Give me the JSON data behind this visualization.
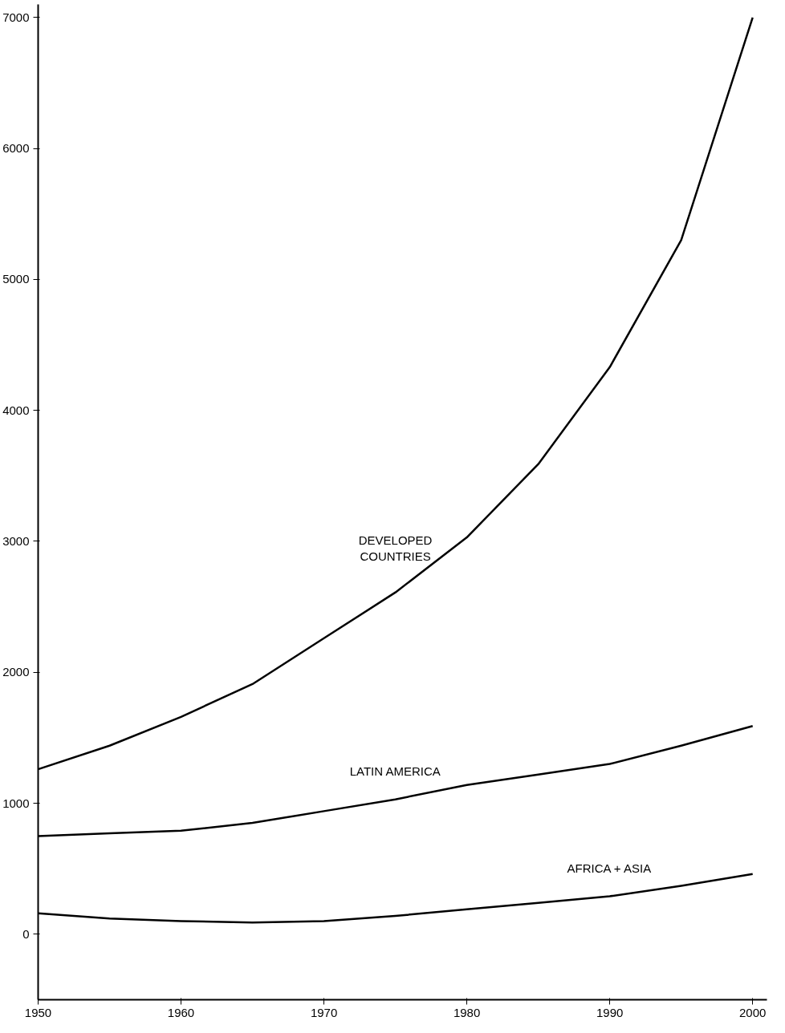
{
  "chart_data": {
    "type": "line",
    "x": [
      1950,
      1955,
      1960,
      1965,
      1970,
      1975,
      1980,
      1985,
      1990,
      1995,
      2000
    ],
    "series": [
      {
        "name": "DEVELOPED\nCOUNTRIES",
        "color": "#000000",
        "values": [
          1260,
          1440,
          1660,
          1910,
          2260,
          2610,
          3030,
          3590,
          4330,
          5300,
          7000
        ]
      },
      {
        "name": "LATIN AMERICA",
        "color": "#000000",
        "values": [
          750,
          770,
          790,
          850,
          940,
          1030,
          1140,
          1220,
          1300,
          1440,
          1590
        ]
      },
      {
        "name": "AFRICA + ASIA",
        "color": "#000000",
        "values": [
          160,
          120,
          100,
          90,
          100,
          140,
          190,
          240,
          290,
          370,
          460
        ]
      }
    ],
    "xlim": [
      1950,
      2001
    ],
    "xticks": [
      1950,
      1960,
      1970,
      1980,
      1990,
      2000
    ],
    "ylim": [
      -500,
      7100
    ],
    "yticks": [
      0,
      1000,
      2000,
      3000,
      4000,
      5000,
      6000,
      7000
    ],
    "grid": false,
    "marker": "none",
    "line_style": "solid"
  }
}
